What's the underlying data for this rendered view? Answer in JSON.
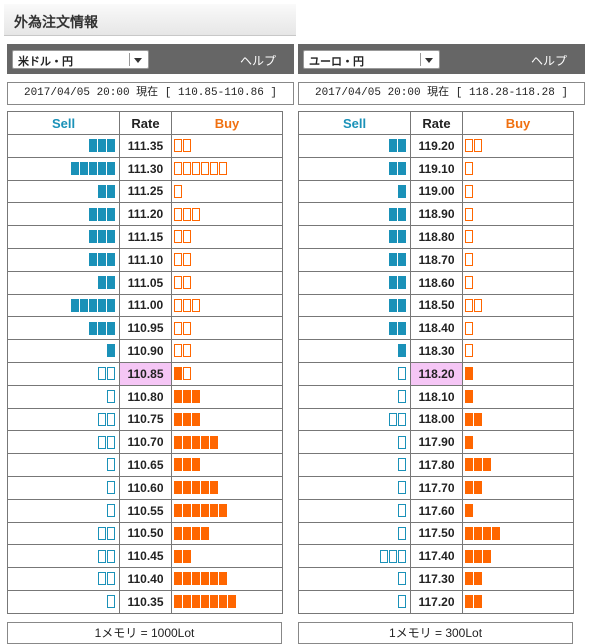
{
  "page_title": "外為注文情報",
  "help_label": "ヘルプ",
  "headers": {
    "sell": "Sell",
    "rate": "Rate",
    "buy": "Buy"
  },
  "colors": {
    "sell": "#1a91b8",
    "buy": "#ff6600",
    "current_rate_bg": "#f5c6f5",
    "header_bar": "#666666"
  },
  "panels": [
    {
      "id": "usd",
      "pair": "米ドル・円",
      "timestamp_info": "2017/04/05  20:00 現在 [ 110.85-110.86 ]",
      "current_rate": "110.85",
      "footer": "1メモリ = 1000Lot",
      "rows": [
        {
          "rate": "111.35",
          "sell": 3,
          "sell_style": "filled",
          "buy": 2,
          "buy_style": "outline"
        },
        {
          "rate": "111.30",
          "sell": 5,
          "sell_style": "filled",
          "buy": 6,
          "buy_style": "outline"
        },
        {
          "rate": "111.25",
          "sell": 2,
          "sell_style": "filled",
          "buy": 1,
          "buy_style": "outline"
        },
        {
          "rate": "111.20",
          "sell": 3,
          "sell_style": "filled",
          "buy": 3,
          "buy_style": "outline"
        },
        {
          "rate": "111.15",
          "sell": 3,
          "sell_style": "filled",
          "buy": 2,
          "buy_style": "outline"
        },
        {
          "rate": "111.10",
          "sell": 3,
          "sell_style": "filled",
          "buy": 2,
          "buy_style": "outline"
        },
        {
          "rate": "111.05",
          "sell": 2,
          "sell_style": "filled",
          "buy": 2,
          "buy_style": "outline"
        },
        {
          "rate": "111.00",
          "sell": 5,
          "sell_style": "filled",
          "buy": 3,
          "buy_style": "outline"
        },
        {
          "rate": "110.95",
          "sell": 3,
          "sell_style": "filled",
          "buy": 2,
          "buy_style": "outline"
        },
        {
          "rate": "110.90",
          "sell": 1,
          "sell_style": "filled",
          "buy": 2,
          "buy_style": "outline"
        },
        {
          "rate": "110.85",
          "sell": 2,
          "sell_style": "outline",
          "buy": 1,
          "buy_style": "filled",
          "buy_extra_outline": 1
        },
        {
          "rate": "110.80",
          "sell": 1,
          "sell_style": "outline",
          "buy": 3,
          "buy_style": "filled"
        },
        {
          "rate": "110.75",
          "sell": 2,
          "sell_style": "outline",
          "buy": 3,
          "buy_style": "filled"
        },
        {
          "rate": "110.70",
          "sell": 2,
          "sell_style": "outline",
          "buy": 5,
          "buy_style": "filled"
        },
        {
          "rate": "110.65",
          "sell": 1,
          "sell_style": "outline",
          "buy": 3,
          "buy_style": "filled"
        },
        {
          "rate": "110.60",
          "sell": 1,
          "sell_style": "outline",
          "buy": 5,
          "buy_style": "filled"
        },
        {
          "rate": "110.55",
          "sell": 1,
          "sell_style": "outline",
          "buy": 6,
          "buy_style": "filled"
        },
        {
          "rate": "110.50",
          "sell": 2,
          "sell_style": "outline",
          "buy": 4,
          "buy_style": "filled"
        },
        {
          "rate": "110.45",
          "sell": 2,
          "sell_style": "outline",
          "buy": 2,
          "buy_style": "filled"
        },
        {
          "rate": "110.40",
          "sell": 2,
          "sell_style": "outline",
          "buy": 6,
          "buy_style": "filled"
        },
        {
          "rate": "110.35",
          "sell": 1,
          "sell_style": "outline",
          "buy": 7,
          "buy_style": "filled"
        }
      ]
    },
    {
      "id": "eur",
      "pair": "ユーロ・円",
      "timestamp_info": "2017/04/05  20:00 現在 [ 118.28-118.28 ]",
      "current_rate": "118.20",
      "footer": "1メモリ = 300Lot",
      "rows": [
        {
          "rate": "119.20",
          "sell": 2,
          "sell_style": "filled",
          "buy": 2,
          "buy_style": "outline"
        },
        {
          "rate": "119.10",
          "sell": 2,
          "sell_style": "filled",
          "buy": 1,
          "buy_style": "outline"
        },
        {
          "rate": "119.00",
          "sell": 1,
          "sell_style": "filled",
          "buy": 1,
          "buy_style": "outline"
        },
        {
          "rate": "118.90",
          "sell": 2,
          "sell_style": "filled",
          "buy": 1,
          "buy_style": "outline"
        },
        {
          "rate": "118.80",
          "sell": 2,
          "sell_style": "filled",
          "buy": 1,
          "buy_style": "outline"
        },
        {
          "rate": "118.70",
          "sell": 2,
          "sell_style": "filled",
          "buy": 1,
          "buy_style": "outline"
        },
        {
          "rate": "118.60",
          "sell": 2,
          "sell_style": "filled",
          "buy": 1,
          "buy_style": "outline"
        },
        {
          "rate": "118.50",
          "sell": 2,
          "sell_style": "filled",
          "buy": 2,
          "buy_style": "outline"
        },
        {
          "rate": "118.40",
          "sell": 2,
          "sell_style": "filled",
          "buy": 1,
          "buy_style": "outline"
        },
        {
          "rate": "118.30",
          "sell": 1,
          "sell_style": "filled",
          "buy": 1,
          "buy_style": "outline"
        },
        {
          "rate": "118.20",
          "sell": 1,
          "sell_style": "outline",
          "buy": 1,
          "buy_style": "filled"
        },
        {
          "rate": "118.10",
          "sell": 1,
          "sell_style": "outline",
          "buy": 1,
          "buy_style": "filled"
        },
        {
          "rate": "118.00",
          "sell": 2,
          "sell_style": "outline",
          "buy": 2,
          "buy_style": "filled"
        },
        {
          "rate": "117.90",
          "sell": 1,
          "sell_style": "outline",
          "buy": 1,
          "buy_style": "filled"
        },
        {
          "rate": "117.80",
          "sell": 1,
          "sell_style": "outline",
          "buy": 3,
          "buy_style": "filled"
        },
        {
          "rate": "117.70",
          "sell": 1,
          "sell_style": "outline",
          "buy": 2,
          "buy_style": "filled"
        },
        {
          "rate": "117.60",
          "sell": 1,
          "sell_style": "outline",
          "buy": 1,
          "buy_style": "filled"
        },
        {
          "rate": "117.50",
          "sell": 1,
          "sell_style": "outline",
          "buy": 4,
          "buy_style": "filled"
        },
        {
          "rate": "117.40",
          "sell": 3,
          "sell_style": "outline",
          "buy": 3,
          "buy_style": "filled"
        },
        {
          "rate": "117.30",
          "sell": 1,
          "sell_style": "outline",
          "buy": 2,
          "buy_style": "filled"
        },
        {
          "rate": "117.20",
          "sell": 1,
          "sell_style": "outline",
          "buy": 2,
          "buy_style": "filled"
        }
      ]
    }
  ]
}
